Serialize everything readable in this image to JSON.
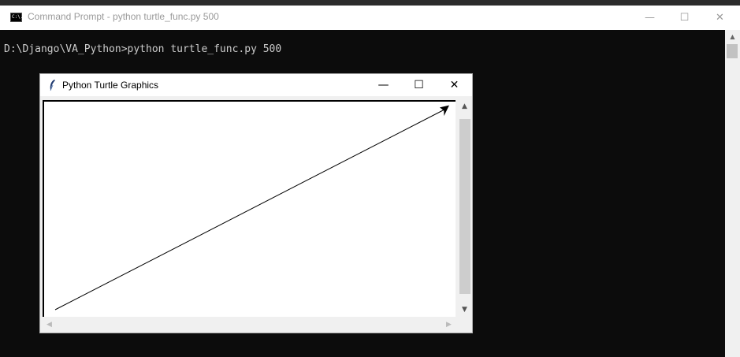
{
  "cmd": {
    "title": "Command Prompt - python  turtle_func.py 500",
    "icon_text": "C:\\.",
    "prompt_line": "D:\\Django\\VA_Python>python turtle_func.py 500",
    "buttons": {
      "minimize": "—",
      "maximize": "☐",
      "close": "✕"
    }
  },
  "turtle": {
    "title": "Python Turtle Graphics",
    "buttons": {
      "minimize": "—",
      "maximize": "☐",
      "close": "✕"
    },
    "scroll": {
      "up": "▲",
      "down": "▼",
      "left": "◀",
      "right": "▶"
    }
  },
  "colors": {
    "console_bg": "#0c0c0c",
    "console_text": "#cccccc",
    "canvas_bg": "#ffffff",
    "line": "#000000"
  }
}
